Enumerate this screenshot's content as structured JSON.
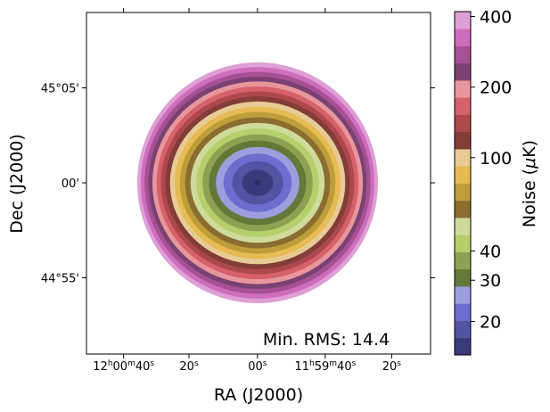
{
  "chart_data": {
    "type": "heatmap",
    "xlabel": "RA (J2000)",
    "ylabel": "Dec (J2000)",
    "x_ticks": [
      {
        "label_main": "12",
        "sup1": "h",
        "mid": "00",
        "sup2": "m",
        "tail": "40",
        "sup3": "s",
        "pos": 0.108
      },
      {
        "label_main": "20",
        "sup1": "s",
        "pos": 0.298
      },
      {
        "label_main": "00",
        "sup1": "s",
        "pos": 0.497
      },
      {
        "label_main": "11",
        "sup1": "h",
        "mid": "59",
        "sup2": "m",
        "tail": "40",
        "sup3": "s",
        "pos": 0.694
      },
      {
        "label_main": "20",
        "sup1": "s",
        "pos": 0.887
      }
    ],
    "y_ticks": [
      {
        "label": "45°05'",
        "value": 5
      },
      {
        "label": "00'",
        "value": 0
      },
      {
        "label": "44°55'",
        "value": -5
      }
    ],
    "colorbar": {
      "label": "Noise (μK)",
      "label_prefix": "Noise (",
      "label_mu": "μ",
      "label_suffix": "K)",
      "scale": "log",
      "vmin": 14.4,
      "vmax": 420,
      "ticks": [
        20,
        30,
        40,
        100,
        200,
        400
      ],
      "colors": [
        "#393b79",
        "#5254a3",
        "#6b6ecf",
        "#9c9ede",
        "#637939",
        "#8ca252",
        "#b5cf6b",
        "#cedb9c",
        "#8c6d31",
        "#bd9e39",
        "#e7ba52",
        "#e7cb94",
        "#843c39",
        "#ad494a",
        "#d6616b",
        "#e7969c",
        "#7b4173",
        "#a55194",
        "#ce6dbd",
        "#de9ed6"
      ]
    },
    "min_rms": 14.4,
    "annotation": "Min. RMS: 14.4",
    "grid": false
  }
}
